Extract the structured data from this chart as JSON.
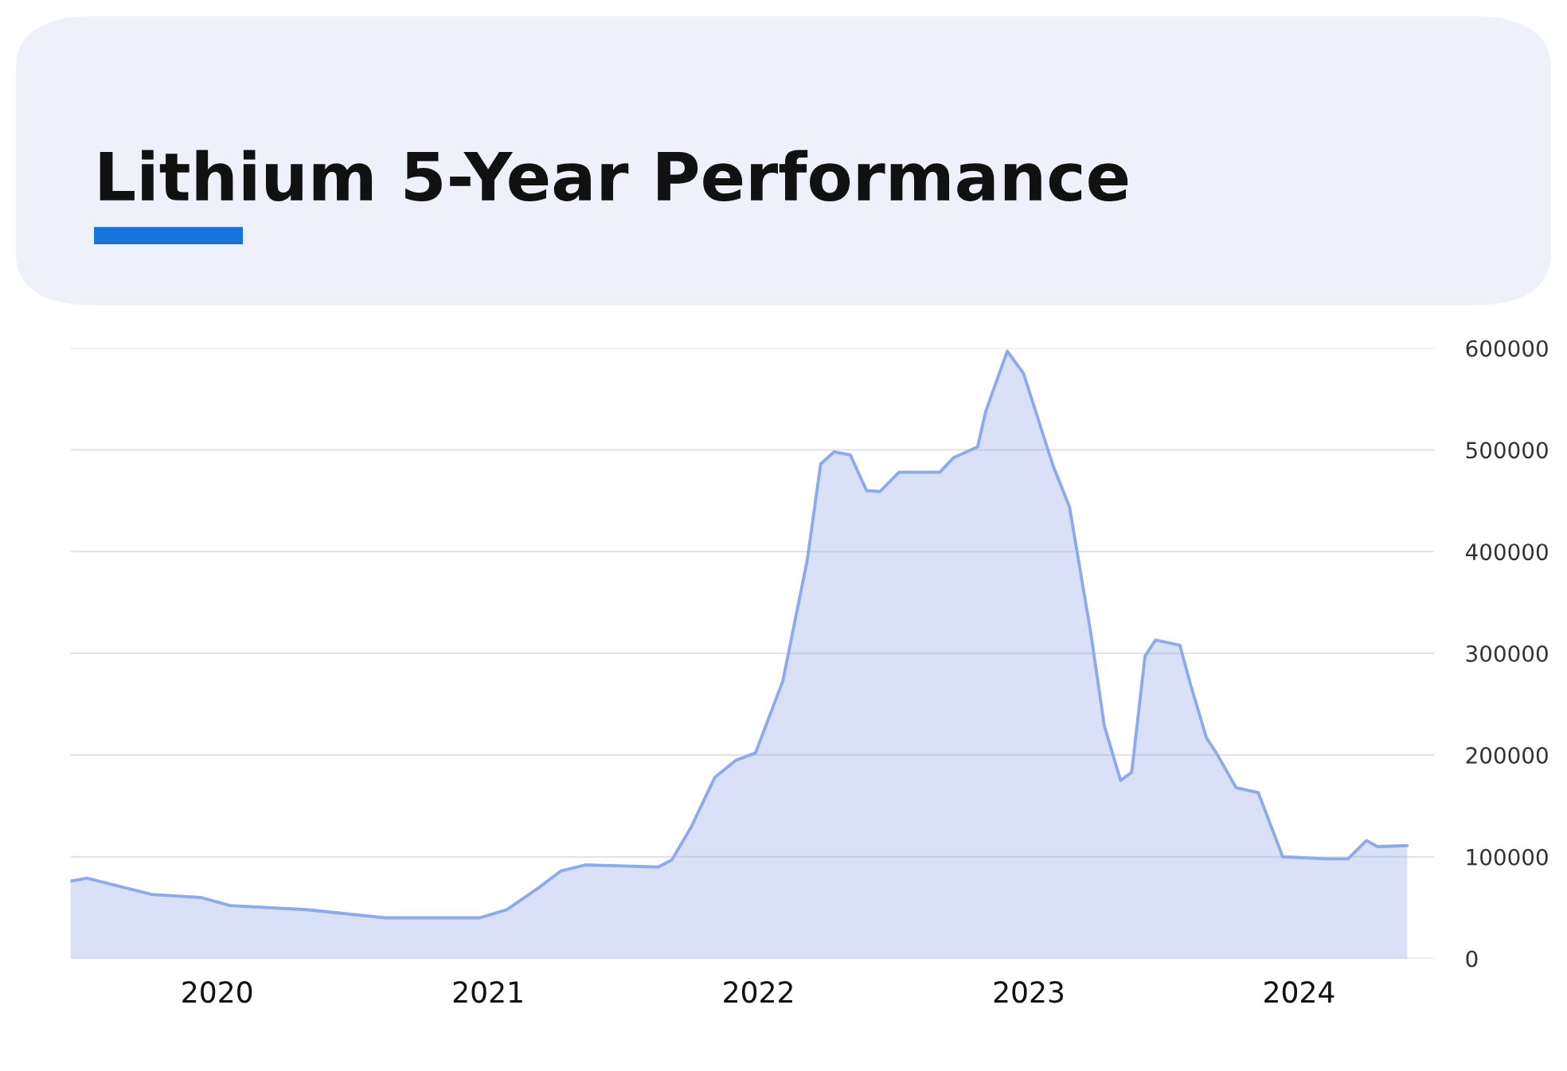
{
  "chart_data": {
    "type": "area",
    "title": "Lithium 5-Year Performance",
    "x": [
      "2019-06-17",
      "2019-07-09",
      "2019-08-22",
      "2019-10-05",
      "2019-12-10",
      "2020-01-19",
      "2020-05-01",
      "2020-08-15",
      "2020-12-20",
      "2021-01-26",
      "2021-03-11",
      "2021-04-09",
      "2021-05-12",
      "2021-08-19",
      "2021-09-06",
      "2021-10-02",
      "2021-11-03",
      "2021-12-02",
      "2021-12-28",
      "2022-02-03",
      "2022-03-08",
      "2022-03-26",
      "2022-04-13",
      "2022-05-05",
      "2022-05-27",
      "2022-06-14",
      "2022-07-10",
      "2022-09-03",
      "2022-09-21",
      "2022-10-24",
      "2022-11-04",
      "2022-12-03",
      "2022-12-25",
      "2023-02-03",
      "2023-02-25",
      "2023-03-26",
      "2023-04-13",
      "2023-05-05",
      "2023-05-20",
      "2023-06-07",
      "2023-06-21",
      "2023-07-24",
      "2023-08-08",
      "2023-08-29",
      "2023-09-13",
      "2023-10-08",
      "2023-11-07",
      "2023-12-10",
      "2024-02-06",
      "2024-03-07",
      "2024-04-01",
      "2024-04-16",
      "2024-05-26"
    ],
    "series": [
      {
        "color": "#8eaaea",
        "values": [
          76000,
          79000,
          71000,
          63000,
          60000,
          52000,
          48000,
          40000,
          40000,
          48000,
          70000,
          86000,
          92000,
          90000,
          97000,
          129000,
          178000,
          195000,
          202000,
          273000,
          392000,
          486000,
          498000,
          495000,
          460000,
          459000,
          478000,
          478000,
          492000,
          503000,
          538000,
          597000,
          575000,
          484000,
          444000,
          319000,
          229000,
          175000,
          183000,
          297000,
          313000,
          308000,
          268000,
          217000,
          200000,
          168000,
          163000,
          100000,
          98000,
          98000,
          116000,
          110000,
          111000
        ]
      }
    ],
    "xlim": [
      "2019-06-17",
      "2024-07-01"
    ],
    "xticks": [
      {
        "value": "2020-01-01",
        "label": "2020"
      },
      {
        "value": "2021-01-01",
        "label": "2021"
      },
      {
        "value": "2022-01-01",
        "label": "2022"
      },
      {
        "value": "2023-01-01",
        "label": "2023"
      },
      {
        "value": "2024-01-01",
        "label": "2024"
      }
    ],
    "ylim": [
      0,
      600000
    ],
    "yticks": [
      0,
      100000,
      200000,
      300000,
      400000,
      500000,
      600000
    ],
    "grid": "y"
  }
}
